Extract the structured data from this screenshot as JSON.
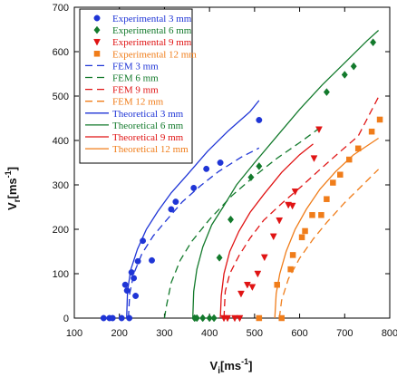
{
  "chart_data": {
    "type": "scatter",
    "title": "",
    "xlabel": "V",
    "xlabel_sub": "i",
    "xlabel_unit": "[ms",
    "xlabel_sup": "-1",
    "xlabel_close": "]",
    "ylabel": "V",
    "ylabel_sub": "r",
    "ylabel_unit": "[ms",
    "ylabel_sup": "-1",
    "ylabel_close": "]",
    "xlim": [
      100,
      800
    ],
    "ylim": [
      0,
      700
    ],
    "xticks": [
      100,
      200,
      300,
      400,
      500,
      600,
      700,
      800
    ],
    "yticks": [
      0,
      100,
      200,
      300,
      400,
      500,
      600,
      700
    ],
    "legend_position": "top-left",
    "series": [
      {
        "name": "Experimental 3 mm",
        "kind": "scatter",
        "marker": "circle",
        "color": "#1f35d6",
        "points": [
          [
            165,
            0
          ],
          [
            178,
            0
          ],
          [
            185,
            0
          ],
          [
            205,
            0
          ],
          [
            213,
            75
          ],
          [
            217,
            62
          ],
          [
            222,
            0
          ],
          [
            227,
            103
          ],
          [
            232,
            90
          ],
          [
            236,
            50
          ],
          [
            241,
            128
          ],
          [
            252,
            174
          ],
          [
            272,
            130
          ],
          [
            315,
            245
          ],
          [
            325,
            262
          ],
          [
            365,
            293
          ],
          [
            393,
            336
          ],
          [
            424,
            350
          ],
          [
            510,
            446
          ]
        ]
      },
      {
        "name": "Experimental 6 mm",
        "kind": "scatter",
        "marker": "diamond",
        "color": "#137a2c",
        "points": [
          [
            367,
            0
          ],
          [
            372,
            0
          ],
          [
            385,
            0
          ],
          [
            400,
            0
          ],
          [
            410,
            0
          ],
          [
            422,
            136
          ],
          [
            447,
            222
          ],
          [
            492,
            317
          ],
          [
            510,
            342
          ],
          [
            660,
            509
          ],
          [
            700,
            548
          ],
          [
            720,
            567
          ],
          [
            763,
            621
          ]
        ]
      },
      {
        "name": "Experimental 9 mm",
        "kind": "scatter",
        "marker": "triangle-down",
        "color": "#e01414",
        "points": [
          [
            432,
            0
          ],
          [
            440,
            0
          ],
          [
            456,
            0
          ],
          [
            467,
            0
          ],
          [
            470,
            55
          ],
          [
            484,
            75
          ],
          [
            495,
            70
          ],
          [
            507,
            100
          ],
          [
            522,
            137
          ],
          [
            542,
            184
          ],
          [
            555,
            220
          ],
          [
            575,
            255
          ],
          [
            584,
            253
          ],
          [
            590,
            285
          ],
          [
            632,
            360
          ],
          [
            643,
            425
          ]
        ]
      },
      {
        "name": "Experimental 12 mm",
        "kind": "scatter",
        "marker": "square",
        "color": "#f07d1a",
        "points": [
          [
            510,
            0
          ],
          [
            550,
            75
          ],
          [
            560,
            0
          ],
          [
            580,
            110
          ],
          [
            585,
            142
          ],
          [
            605,
            182
          ],
          [
            612,
            196
          ],
          [
            628,
            232
          ],
          [
            648,
            232
          ],
          [
            660,
            268
          ],
          [
            674,
            305
          ],
          [
            690,
            323
          ],
          [
            710,
            357
          ],
          [
            730,
            382
          ],
          [
            760,
            420
          ],
          [
            778,
            447
          ]
        ]
      },
      {
        "name": "FEM 3 mm",
        "kind": "line",
        "dash": "8,5",
        "color": "#1f35d6",
        "points": [
          [
            220,
            0
          ],
          [
            223,
            55
          ],
          [
            232,
            100
          ],
          [
            250,
            145
          ],
          [
            275,
            185
          ],
          [
            300,
            215
          ],
          [
            340,
            262
          ],
          [
            380,
            298
          ],
          [
            420,
            330
          ],
          [
            470,
            362
          ],
          [
            510,
            383
          ]
        ]
      },
      {
        "name": "FEM 6 mm",
        "kind": "line",
        "dash": "8,5",
        "color": "#137a2c",
        "points": [
          [
            300,
            0
          ],
          [
            305,
            30
          ],
          [
            315,
            80
          ],
          [
            335,
            130
          ],
          [
            360,
            172
          ],
          [
            400,
            222
          ],
          [
            450,
            276
          ],
          [
            500,
            320
          ],
          [
            550,
            360
          ],
          [
            600,
            395
          ],
          [
            640,
            425
          ]
        ]
      },
      {
        "name": "FEM 9 mm",
        "kind": "line",
        "dash": "8,5",
        "color": "#e01414",
        "points": [
          [
            432,
            0
          ],
          [
            435,
            60
          ],
          [
            445,
            100
          ],
          [
            465,
            140
          ],
          [
            490,
            180
          ],
          [
            520,
            220
          ],
          [
            560,
            258
          ],
          [
            600,
            293
          ],
          [
            640,
            330
          ],
          [
            690,
            375
          ],
          [
            730,
            410
          ],
          [
            775,
            498
          ]
        ]
      },
      {
        "name": "FEM 12 mm",
        "kind": "line",
        "dash": "8,5",
        "color": "#f07d1a",
        "points": [
          [
            555,
            0
          ],
          [
            560,
            40
          ],
          [
            575,
            88
          ],
          [
            600,
            135
          ],
          [
            630,
            178
          ],
          [
            660,
            215
          ],
          [
            700,
            260
          ],
          [
            740,
            300
          ],
          [
            775,
            335
          ]
        ]
      },
      {
        "name": "Theoretical 3 mm",
        "kind": "line",
        "dash": "",
        "color": "#1f35d6",
        "points": [
          [
            216,
            0
          ],
          [
            218,
            60
          ],
          [
            225,
            108
          ],
          [
            240,
            155
          ],
          [
            260,
            200
          ],
          [
            285,
            240
          ],
          [
            315,
            282
          ],
          [
            350,
            322
          ],
          [
            395,
            375
          ],
          [
            440,
            420
          ],
          [
            490,
            465
          ],
          [
            510,
            490
          ]
        ]
      },
      {
        "name": "Theoretical 6 mm",
        "kind": "line",
        "dash": "",
        "color": "#137a2c",
        "points": [
          [
            363,
            0
          ],
          [
            365,
            60
          ],
          [
            372,
            110
          ],
          [
            385,
            160
          ],
          [
            405,
            210
          ],
          [
            430,
            250
          ],
          [
            460,
            300
          ],
          [
            500,
            350
          ],
          [
            550,
            410
          ],
          [
            600,
            470
          ],
          [
            650,
            525
          ],
          [
            700,
            575
          ],
          [
            750,
            625
          ],
          [
            775,
            648
          ]
        ]
      },
      {
        "name": "Theoretical 9 mm",
        "kind": "line",
        "dash": "",
        "color": "#e01414",
        "points": [
          [
            424,
            0
          ],
          [
            426,
            50
          ],
          [
            432,
            100
          ],
          [
            445,
            150
          ],
          [
            465,
            195
          ],
          [
            490,
            238
          ],
          [
            520,
            278
          ],
          [
            560,
            328
          ],
          [
            600,
            368
          ],
          [
            630,
            392
          ]
        ]
      },
      {
        "name": "Theoretical 12 mm",
        "kind": "line",
        "dash": "",
        "color": "#f07d1a",
        "points": [
          [
            545,
            0
          ],
          [
            548,
            55
          ],
          [
            556,
            100
          ],
          [
            570,
            150
          ],
          [
            590,
            200
          ],
          [
            615,
            245
          ],
          [
            645,
            290
          ],
          [
            680,
            330
          ],
          [
            720,
            368
          ],
          [
            775,
            405
          ]
        ]
      }
    ]
  }
}
